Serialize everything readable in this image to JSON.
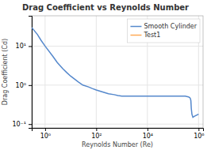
{
  "chart_data": {
    "type": "line",
    "title": "Drag Coefficient vs Reynolds Number",
    "xlabel": "Reynolds Number (Re)",
    "ylabel": "Drag Coefficient (Cd)",
    "x": [
      0.3,
      0.5,
      0.7,
      1.0,
      2.0,
      3.0,
      5.0,
      7.0,
      10,
      20,
      30,
      50,
      70,
      100,
      200,
      300,
      500,
      700,
      1000,
      2000,
      3000,
      5000,
      7000,
      10000,
      15000,
      20000,
      30000,
      50000,
      70000,
      100000,
      150000,
      200000,
      300000,
      400000,
      450000,
      480000,
      500000,
      520000,
      550000,
      600000,
      700000,
      1000000
    ],
    "series": [
      {
        "name": "Smooth Cylinder",
        "color": "#5588cc",
        "values": [
          30,
          20,
          14,
          10,
          5.5,
          3.8,
          2.6,
          2.1,
          1.7,
          1.2,
          1.0,
          0.9,
          0.82,
          0.75,
          0.65,
          0.6,
          0.57,
          0.54,
          0.52,
          0.52,
          0.52,
          0.52,
          0.52,
          0.52,
          0.52,
          0.52,
          0.52,
          0.52,
          0.52,
          0.52,
          0.52,
          0.52,
          0.52,
          0.5,
          0.48,
          0.45,
          0.4,
          0.25,
          0.18,
          0.15,
          0.16,
          0.18
        ]
      },
      {
        "name": "Test1",
        "color": "#ffaa55",
        "values": [
          null,
          null,
          null,
          null,
          null,
          null,
          null,
          null,
          null,
          null,
          null,
          null,
          null,
          null,
          null,
          null,
          null,
          null,
          null,
          null,
          null,
          null,
          null,
          null,
          null,
          null,
          null,
          null,
          null,
          null,
          null,
          null,
          null,
          null,
          null,
          null,
          null,
          null,
          null,
          null,
          null,
          null
        ]
      }
    ],
    "xlim": [
      0.3,
      1500000
    ],
    "ylim": [
      0.08,
      60
    ],
    "xticks": [
      {
        "value": 1,
        "label": "10⁰"
      },
      {
        "value": 100,
        "label": "10²"
      },
      {
        "value": 10000,
        "label": "10⁴"
      },
      {
        "value": 1000000,
        "label": "10⁶"
      }
    ],
    "yticks": [
      {
        "value": 0.1,
        "label": "10⁻¹"
      },
      {
        "value": 1,
        "label": "10⁰"
      },
      {
        "value": 10,
        "label": "10¹"
      }
    ],
    "log": true,
    "grid": true,
    "legend": "upper right"
  }
}
